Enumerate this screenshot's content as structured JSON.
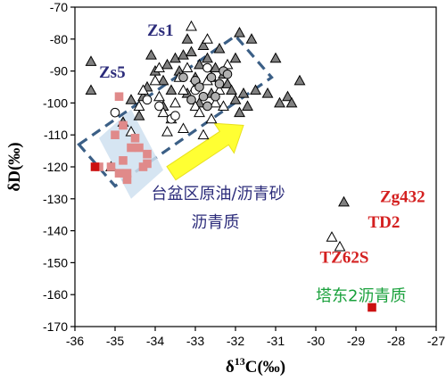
{
  "chart_data": {
    "type": "scatter",
    "title": "",
    "xlabel": "δ13C(‰)",
    "xlabel_parts": {
      "prefix": "δ",
      "sup": "13",
      "suffix": "C(‰)"
    },
    "ylabel": "δD(‰)",
    "xlim": [
      -36,
      -27
    ],
    "ylim": [
      -170,
      -70
    ],
    "xticks": [
      -36,
      -35,
      -34,
      -33,
      -32,
      -31,
      -30,
      -29,
      -28,
      -27
    ],
    "yticks": [
      -170,
      -160,
      -150,
      -140,
      -130,
      -120,
      -110,
      -100,
      -90,
      -80,
      -70
    ],
    "grid": false,
    "legend": "none",
    "series": [
      {
        "marker": "triangle",
        "fill": "#808080",
        "points": [
          [
            -35.6,
            -87
          ],
          [
            -35.6,
            -96
          ],
          [
            -34.6,
            -99
          ],
          [
            -35.1,
            -120
          ],
          [
            -34.3,
            -98
          ],
          [
            -34.1,
            -85
          ],
          [
            -34.0,
            -90
          ],
          [
            -33.8,
            -93
          ],
          [
            -33.6,
            -96
          ],
          [
            -33.5,
            -86
          ],
          [
            -33.4,
            -90
          ],
          [
            -33.3,
            -85
          ],
          [
            -33.2,
            -80
          ],
          [
            -33.1,
            -84
          ],
          [
            -32.9,
            -88
          ],
          [
            -32.8,
            -82
          ],
          [
            -32.7,
            -86
          ],
          [
            -32.6,
            -92
          ],
          [
            -32.5,
            -89
          ],
          [
            -32.4,
            -83
          ],
          [
            -32.3,
            -91
          ],
          [
            -32.2,
            -94
          ],
          [
            -32.1,
            -96
          ],
          [
            -32.0,
            -99
          ],
          [
            -31.9,
            -103
          ],
          [
            -31.8,
            -97
          ],
          [
            -31.7,
            -101
          ],
          [
            -31.6,
            -80
          ],
          [
            -31.5,
            -96
          ],
          [
            -32.0,
            -86
          ],
          [
            -31.9,
            -78
          ],
          [
            -33.0,
            -92
          ],
          [
            -33.7,
            -88
          ],
          [
            -34.2,
            -95
          ],
          [
            -31.2,
            -97
          ],
          [
            -31.0,
            -86
          ],
          [
            -30.9,
            -100
          ],
          [
            -30.7,
            -98
          ],
          [
            -30.6,
            -100
          ],
          [
            -30.4,
            -93
          ],
          [
            -32.9,
            -100
          ],
          [
            -33.8,
            -101
          ],
          [
            -33.2,
            -97
          ],
          [
            -34.8,
            -106
          ],
          [
            -34.4,
            -104
          ],
          [
            -32.6,
            -97
          ]
        ]
      },
      {
        "marker": "triangle",
        "fill": "#ffffff",
        "points": [
          [
            -34.6,
            -109
          ],
          [
            -34.3,
            -96
          ],
          [
            -34.0,
            -93
          ],
          [
            -33.9,
            -98
          ],
          [
            -33.8,
            -103
          ],
          [
            -33.6,
            -105
          ],
          [
            -33.5,
            -100
          ],
          [
            -33.4,
            -92
          ],
          [
            -33.3,
            -96
          ],
          [
            -33.2,
            -89
          ],
          [
            -33.1,
            -76
          ],
          [
            -33.0,
            -101
          ],
          [
            -32.8,
            -110
          ],
          [
            -32.7,
            -80
          ],
          [
            -32.6,
            -105
          ],
          [
            -32.5,
            -100
          ],
          [
            -32.4,
            -96
          ],
          [
            -32.3,
            -101
          ],
          [
            -33.7,
            -109
          ],
          [
            -32.9,
            -103
          ],
          [
            -33.3,
            -108
          ],
          [
            -32.7,
            -93
          ],
          [
            -33.9,
            -89
          ],
          [
            -32.2,
            -88
          ],
          [
            -34.4,
            -101
          ],
          [
            -33.0,
            -95
          ]
        ]
      },
      {
        "marker": "circle",
        "fill": "#ffffff",
        "points": [
          [
            -35.0,
            -103
          ],
          [
            -33.6,
            -105
          ],
          [
            -33.5,
            -104
          ],
          [
            -34.2,
            -99
          ],
          [
            -33.9,
            -101
          ],
          [
            -33.0,
            -96
          ],
          [
            -32.7,
            -89
          ]
        ]
      },
      {
        "marker": "circle",
        "fill": "#b0b0b0",
        "points": [
          [
            -33.3,
            -92
          ],
          [
            -33.0,
            -93
          ],
          [
            -32.9,
            -95
          ],
          [
            -32.8,
            -98
          ],
          [
            -32.7,
            -101
          ],
          [
            -32.4,
            -94
          ],
          [
            -32.3,
            -90
          ],
          [
            -32.2,
            -91
          ],
          [
            -32.5,
            -98
          ],
          [
            -33.1,
            -99
          ],
          [
            -32.6,
            -92
          ]
        ]
      },
      {
        "marker": "square",
        "fill": "#e08a8a",
        "points": [
          [
            -35.4,
            -120
          ],
          [
            -35.1,
            -120
          ],
          [
            -34.9,
            -122
          ],
          [
            -34.8,
            -118
          ],
          [
            -34.7,
            -122
          ],
          [
            -34.6,
            -114
          ],
          [
            -34.4,
            -114
          ],
          [
            -34.3,
            -120
          ],
          [
            -34.2,
            -116
          ],
          [
            -34.5,
            -111
          ],
          [
            -34.8,
            -107
          ],
          [
            -34.9,
            -98
          ],
          [
            -35.0,
            -110
          ],
          [
            -34.7,
            -124
          ],
          [
            -34.2,
            -119
          ]
        ]
      },
      {
        "marker": "square",
        "fill": "#cc1111",
        "points": [
          [
            -28.6,
            -164
          ],
          [
            -35.5,
            -120
          ]
        ]
      },
      {
        "marker": "triangle",
        "fill": "#808080",
        "points": [
          [
            -29.3,
            -131
          ]
        ]
      },
      {
        "marker": "triangle",
        "fill": "#ffffff",
        "points": [
          [
            -29.6,
            -142
          ],
          [
            -29.4,
            -145
          ]
        ]
      }
    ],
    "regions": [
      {
        "kind": "dashed-box",
        "corners": [
          [
            -35.9,
            -113
          ],
          [
            -32.0,
            -79
          ],
          [
            -31.1,
            -92
          ],
          [
            -35.0,
            -126
          ]
        ],
        "stroke": "#3b5f86",
        "fill": "none"
      },
      {
        "kind": "shaded-box",
        "corners": [
          [
            -35.4,
            -111
          ],
          [
            -34.6,
            -102
          ],
          [
            -33.8,
            -121
          ],
          [
            -34.6,
            -130
          ]
        ],
        "fill": "#cfe0f0"
      }
    ],
    "arrow": {
      "from": [
        -33.6,
        -122
      ],
      "to": [
        -31.8,
        -107
      ],
      "fill": "#ffff33"
    },
    "annotations": [
      {
        "text": "Zs1",
        "x": -34.2,
        "y": -79,
        "color": "#2b2b7a",
        "style": "latin"
      },
      {
        "text": "Zs5",
        "x": -35.4,
        "y": -92,
        "color": "#2b2b7a",
        "style": "latin"
      },
      {
        "text": "台盆区原油/沥青砂",
        "x": -34.1,
        "y": -130,
        "color": "#2b2b7a",
        "style": "cjk"
      },
      {
        "text": "沥青质",
        "x": -33.1,
        "y": -139,
        "color": "#2b2b7a",
        "style": "cjk"
      },
      {
        "text": "Zg432",
        "x": -28.4,
        "y": -131,
        "color": "#d42020",
        "style": "latin"
      },
      {
        "text": "TD2",
        "x": -28.7,
        "y": -139,
        "color": "#d42020",
        "style": "latin"
      },
      {
        "text": "TZ62S",
        "x": -29.9,
        "y": -150,
        "color": "#d42020",
        "style": "latin"
      },
      {
        "text": "塔东2沥青质",
        "x": -30.0,
        "y": -162,
        "color": "#1aa13c",
        "style": "cjk"
      }
    ]
  }
}
